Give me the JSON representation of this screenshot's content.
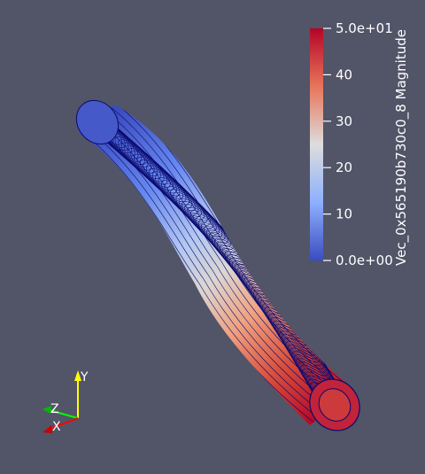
{
  "colorbar": {
    "title": "Vec_0x565190b730c0_8 Magnitude",
    "ticks": [
      {
        "value": 50,
        "label": "5.0e+01"
      },
      {
        "value": 40,
        "label": "40"
      },
      {
        "value": 30,
        "label": "30"
      },
      {
        "value": 20,
        "label": "20"
      },
      {
        "value": 10,
        "label": "10"
      },
      {
        "value": 0,
        "label": "0.0e+00"
      }
    ],
    "range": [
      0,
      50
    ],
    "colormap": "cool-to-warm",
    "colors": {
      "low": "#3b4cc0",
      "mid": "#dddddd",
      "high": "#b40426"
    }
  },
  "axes_triad": {
    "y_label": "Y",
    "z_label": "Z",
    "x_label": "X",
    "colors": {
      "x": "#ff0000",
      "y": "#ffff00",
      "z": "#00ff00"
    }
  },
  "colors": {
    "background": "#525468",
    "mesh_edges": "#0a0a6e"
  }
}
